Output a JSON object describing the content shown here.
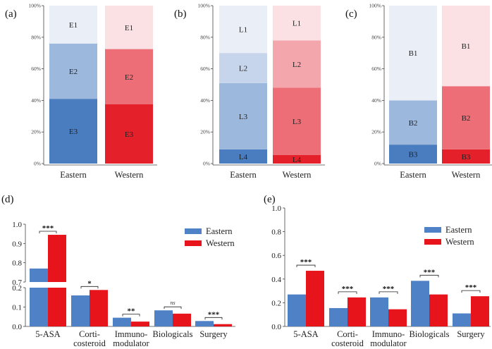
{
  "chart_data": [
    {
      "panel": "(a)",
      "type": "bar",
      "stacked": true,
      "categories": [
        "Eastern",
        "Western"
      ],
      "ylim": [
        0,
        100
      ],
      "yticks": [
        "0%",
        "20%",
        "40%",
        "60%",
        "80%",
        "100%"
      ],
      "segments": [
        {
          "name": "E3",
          "values": [
            41,
            37.5
          ]
        },
        {
          "name": "E2",
          "values": [
            35,
            35
          ]
        },
        {
          "name": "E1",
          "values": [
            24,
            27.5
          ]
        }
      ]
    },
    {
      "panel": "(b)",
      "type": "bar",
      "stacked": true,
      "categories": [
        "Eastern",
        "Western"
      ],
      "ylim": [
        0,
        100
      ],
      "yticks": [
        "0%",
        "20%",
        "40%",
        "60%",
        "80%",
        "100%"
      ],
      "segments": [
        {
          "name": "L4",
          "values": [
            9,
            5.5
          ]
        },
        {
          "name": "L3",
          "values": [
            42,
            42.5
          ]
        },
        {
          "name": "L2",
          "values": [
            19,
            30
          ]
        },
        {
          "name": "L1",
          "values": [
            30,
            22
          ]
        }
      ]
    },
    {
      "panel": "(c)",
      "type": "bar",
      "stacked": true,
      "categories": [
        "Eastern",
        "Western"
      ],
      "ylim": [
        0,
        100
      ],
      "yticks": [
        "0%",
        "20%",
        "40%",
        "60%",
        "80%",
        "100%"
      ],
      "segments": [
        {
          "name": "B3",
          "values": [
            12,
            9
          ]
        },
        {
          "name": "B2",
          "values": [
            28,
            40
          ]
        },
        {
          "name": "B1",
          "values": [
            60,
            51
          ]
        }
      ]
    },
    {
      "panel": "(d)",
      "type": "bar",
      "broken_axis": true,
      "categories": [
        "5-ASA",
        "Corti-\ncosteroid",
        "Immuno-\nmodulator",
        "Biologicals",
        "Surgery"
      ],
      "series": [
        {
          "name": "Eastern",
          "values": [
            0.77,
            0.16,
            0.045,
            0.083,
            0.028
          ]
        },
        {
          "name": "Western",
          "values": [
            0.945,
            0.188,
            0.025,
            0.066,
            0.012
          ]
        }
      ],
      "ylim_lower": [
        0,
        0.2
      ],
      "ylim_upper": [
        0.7,
        1.0
      ],
      "yticks_lower": [
        "0.0",
        "0.1",
        "0.2"
      ],
      "yticks_upper": [
        "0.7",
        "0.8",
        "0.9",
        "1.0"
      ],
      "significance": [
        "***",
        "*",
        "**",
        "ns",
        "***"
      ],
      "legend": "top-right"
    },
    {
      "panel": "(e)",
      "type": "bar",
      "categories": [
        "5-ASA",
        "Corti-\ncosteroid",
        "Immuno-\nmodulator",
        "Biologicals",
        "Surgery"
      ],
      "series": [
        {
          "name": "Eastern",
          "values": [
            0.27,
            0.155,
            0.245,
            0.385,
            0.11
          ]
        },
        {
          "name": "Western",
          "values": [
            0.47,
            0.245,
            0.145,
            0.27,
            0.255
          ]
        }
      ],
      "ylim": [
        0,
        1.0
      ],
      "yticks": [
        "0.0",
        "0.2",
        "0.4",
        "0.6",
        "0.8",
        "1.0"
      ],
      "significance": [
        "***",
        "***",
        "***",
        "***",
        "***"
      ],
      "legend": "top-right"
    }
  ],
  "colors": {
    "east_dark": "#4a7dbf",
    "east_mid": "#9db8dd",
    "east_light": "#c6d5eb",
    "east_pale": "#e9eef7",
    "west_dark": "#e4202a",
    "west_mid": "#ee6e78",
    "west_light": "#f3a6ac",
    "west_pale": "#fbe1e3",
    "bar_east": "#4f81c7",
    "bar_west": "#e8141c"
  }
}
